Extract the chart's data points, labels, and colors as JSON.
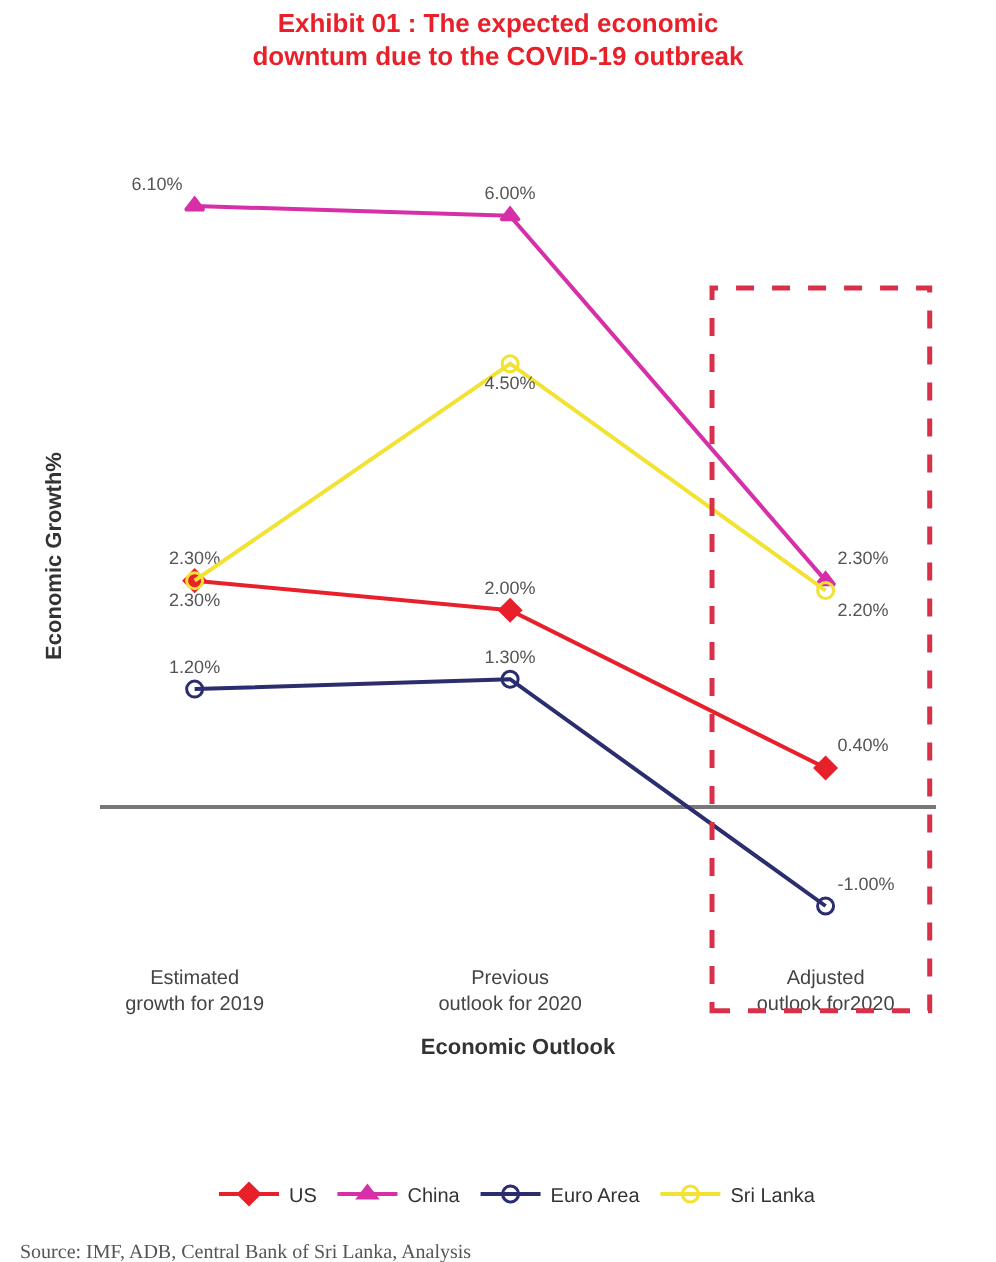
{
  "chart_data": {
    "type": "line",
    "title": "Exhibit 01 : The expected economic\ndowntum due to the COVID-19 outbreak",
    "categories": [
      "Estimated\ngrowth for 2019",
      "Previous\noutlook for 2020",
      "Adjusted\noutlook for2020"
    ],
    "xlabel": "Economic Outlook",
    "ylabel": "Economic Growth%",
    "series": [
      {
        "name": "US",
        "color": "#e8202a",
        "values": [
          2.3,
          2.0,
          0.4
        ],
        "value_labels": [
          "2.30%",
          "2.00%",
          "0.40%"
        ],
        "marker": "diamond"
      },
      {
        "name": "China",
        "color": "#d62fa8",
        "values": [
          6.1,
          6.0,
          2.3
        ],
        "value_labels": [
          "6.10%",
          "6.00%",
          "2.30%"
        ],
        "marker": "triangle"
      },
      {
        "name": "Euro Area",
        "color": "#2b2d6e",
        "values": [
          1.2,
          1.3,
          -1.0
        ],
        "value_labels": [
          "1.20%",
          "1.30%",
          "-1.00%"
        ],
        "marker": "circle-open"
      },
      {
        "name": "Sri Lanka",
        "color": "#f2e233",
        "values": [
          2.3,
          4.5,
          2.2
        ],
        "value_labels": [
          "2.30%",
          "4.50%",
          "2.20%"
        ],
        "marker": "circle-open"
      }
    ],
    "legend": "bottom",
    "annotations": [
      "Source: IMF, ADB, Central Bank of Sri Lanka, Analysis"
    ]
  }
}
